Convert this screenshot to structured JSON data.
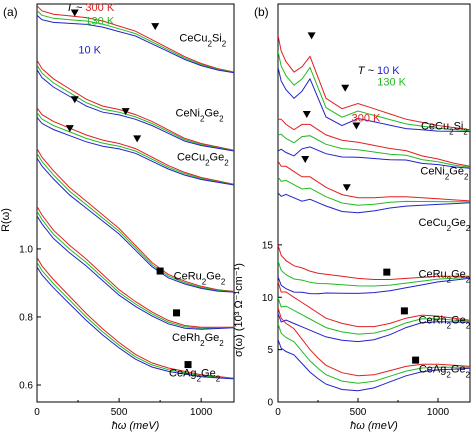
{
  "chart_data": [
    {
      "type": "line",
      "panel_label": "(a)",
      "xlabel": "ħω (meV)",
      "ylabel": "R(ω)",
      "xlim": [
        0,
        1200
      ],
      "ylim": [
        0.55,
        1.72
      ],
      "x_ticks": [
        0,
        500,
        1000
      ],
      "y_ticks": [
        0.6,
        0.8,
        1.0
      ],
      "y_tick_labels": [
        "0.6",
        "0.8",
        "1.0"
      ],
      "temperature_labels": [
        {
          "text": "300 K",
          "prefix": "T ~ ",
          "color": "#e02020",
          "x": 470,
          "y": 1.7
        },
        {
          "text": "130 K",
          "prefix": "",
          "color": "#22bb22",
          "x": 470,
          "y": 1.66
        },
        {
          "text": "10 K",
          "prefix": "",
          "color": "#2222cc",
          "x": 390,
          "y": 1.575
        }
      ],
      "markers": [
        {
          "shape": "triangle",
          "x": 230,
          "y": 1.695
        },
        {
          "shape": "triangle",
          "x": 720,
          "y": 1.655
        },
        {
          "shape": "triangle",
          "x": 230,
          "y": 1.44
        },
        {
          "shape": "triangle",
          "x": 540,
          "y": 1.405
        },
        {
          "shape": "triangle",
          "x": 200,
          "y": 1.355
        },
        {
          "shape": "triangle",
          "x": 610,
          "y": 1.325
        },
        {
          "shape": "square",
          "x": 750,
          "y": 0.935
        },
        {
          "shape": "square",
          "x": 850,
          "y": 0.812
        },
        {
          "shape": "square",
          "x": 920,
          "y": 0.66
        }
      ],
      "compound_labels": [
        {
          "text": "CeCu2Si2",
          "x": 1010,
          "y": 1.61
        },
        {
          "text": "CeNi2Ge2",
          "x": 990,
          "y": 1.39
        },
        {
          "text": "CeCu2Ge2",
          "x": 1010,
          "y": 1.26
        },
        {
          "text": "CeRu2Ge2",
          "x": 990,
          "y": 0.91
        },
        {
          "text": "CeRh2Ge2",
          "x": 980,
          "y": 0.73
        },
        {
          "text": "CeAg2Ge2",
          "x": 960,
          "y": 0.625
        }
      ],
      "series": [
        {
          "name": "CeCu2Si2",
          "x": [
            0,
            30,
            100,
            200,
            300,
            400,
            500,
            600,
            700,
            800,
            900,
            1000,
            1100,
            1200
          ],
          "y": [
            1.715,
            1.7,
            1.69,
            1.685,
            1.68,
            1.67,
            1.655,
            1.64,
            1.615,
            1.59,
            1.565,
            1.545,
            1.53,
            1.52
          ]
        },
        {
          "name": "CeNi2Ge2",
          "x": [
            0,
            30,
            100,
            200,
            300,
            400,
            500,
            600,
            700,
            800,
            900,
            1000,
            1100,
            1200
          ],
          "y": [
            1.555,
            1.53,
            1.5,
            1.47,
            1.44,
            1.42,
            1.41,
            1.395,
            1.375,
            1.35,
            1.325,
            1.31,
            1.3,
            1.29
          ]
        },
        {
          "name": "CeCu2Ge2",
          "x": [
            0,
            30,
            100,
            200,
            300,
            400,
            500,
            600,
            700,
            800,
            900,
            1000,
            1100,
            1200
          ],
          "y": [
            1.415,
            1.395,
            1.375,
            1.355,
            1.335,
            1.32,
            1.31,
            1.295,
            1.27,
            1.245,
            1.225,
            1.21,
            1.2,
            1.19
          ]
        },
        {
          "name": "CeRu2Ge2",
          "x": [
            0,
            30,
            100,
            200,
            300,
            400,
            500,
            600,
            700,
            800,
            900,
            1000,
            1100,
            1200
          ],
          "y": [
            1.295,
            1.27,
            1.23,
            1.18,
            1.14,
            1.1,
            1.06,
            1.01,
            0.96,
            0.925,
            0.905,
            0.89,
            0.88,
            0.875
          ]
        },
        {
          "name": "CeRh2Ge2",
          "x": [
            0,
            30,
            100,
            200,
            300,
            400,
            500,
            600,
            700,
            800,
            900,
            1000,
            1100,
            1200
          ],
          "y": [
            1.125,
            1.1,
            1.055,
            1.01,
            0.97,
            0.925,
            0.88,
            0.845,
            0.815,
            0.79,
            0.775,
            0.77,
            0.77,
            0.77
          ]
        },
        {
          "name": "CeAg2Ge2",
          "x": [
            0,
            30,
            100,
            200,
            300,
            400,
            500,
            600,
            700,
            800,
            900,
            1000,
            1100,
            1200
          ],
          "y": [
            0.975,
            0.95,
            0.91,
            0.86,
            0.81,
            0.765,
            0.725,
            0.69,
            0.665,
            0.65,
            0.64,
            0.63,
            0.625,
            0.62
          ]
        }
      ]
    },
    {
      "type": "line",
      "panel_label": "(b)",
      "xlabel": "ħω (meV)",
      "ylabel": "σ(ω) (10³ Ω⁻¹cm⁻¹)",
      "xlim": [
        0,
        1200
      ],
      "ylim": [
        0,
        38
      ],
      "x_ticks": [
        0,
        500,
        1000
      ],
      "y_ticks": [
        0,
        5,
        10,
        15
      ],
      "y_tick_labels": [
        "0",
        "5",
        "10",
        "15"
      ],
      "temperature_labels": [
        {
          "text": "10 K",
          "prefix": "T ~ ",
          "color": "#2222cc",
          "x": 760,
          "y": 31.3
        },
        {
          "text": "130 K",
          "prefix": "",
          "color": "#22bb22",
          "x": 800,
          "y": 30.2
        },
        {
          "text": "300 K",
          "prefix": "",
          "color": "#e02020",
          "x": 640,
          "y": 26.8
        }
      ],
      "markers": [
        {
          "shape": "triangle",
          "x": 210,
          "y": 35.0
        },
        {
          "shape": "triangle",
          "x": 420,
          "y": 30.0
        },
        {
          "shape": "triangle",
          "x": 180,
          "y": 27.5
        },
        {
          "shape": "triangle",
          "x": 490,
          "y": 26.4
        },
        {
          "shape": "triangle",
          "x": 170,
          "y": 23.2
        },
        {
          "shape": "triangle",
          "x": 430,
          "y": 20.5
        },
        {
          "shape": "square",
          "x": 680,
          "y": 12.4
        },
        {
          "shape": "square",
          "x": 790,
          "y": 8.7
        },
        {
          "shape": "square",
          "x": 860,
          "y": 4.0
        }
      ],
      "compound_labels": [
        {
          "text": "CeCu2Si2",
          "x": 1040,
          "y": 26.0
        },
        {
          "text": "CeNi2Ge2",
          "x": 1040,
          "y": 21.7
        },
        {
          "text": "CeCu2Ge2",
          "x": 1040,
          "y": 16.8
        },
        {
          "text": "CeRu2Ge2",
          "x": 1040,
          "y": 11.9
        },
        {
          "text": "CeRh2Ge2",
          "x": 1040,
          "y": 7.5
        },
        {
          "text": "CeAg2Ge2",
          "x": 1040,
          "y": 2.8
        }
      ],
      "series": [
        {
          "name": "CeCu2Si2",
          "x": [
            0,
            20,
            50,
            100,
            150,
            200,
            250,
            300,
            400,
            500,
            600,
            700,
            800,
            900,
            1000,
            1100,
            1200
          ],
          "y": [
            35.0,
            33.5,
            32.5,
            31.5,
            32.0,
            33.0,
            31.0,
            29.0,
            28.0,
            28.5,
            28.0,
            27.5,
            27.0,
            26.7,
            26.4,
            26.2,
            26.0
          ]
        },
        {
          "name": "CeNi2Ge2",
          "x": [
            0,
            20,
            50,
            100,
            150,
            200,
            250,
            300,
            400,
            500,
            600,
            700,
            800,
            900,
            1000,
            1100,
            1200
          ],
          "y": [
            27.0,
            27.0,
            26.5,
            26.0,
            26.5,
            26.5,
            26.0,
            25.5,
            25.0,
            24.8,
            24.5,
            24.2,
            24.0,
            23.5,
            23.2,
            22.8,
            22.5
          ]
        },
        {
          "name": "CeCu2Ge2",
          "x": [
            0,
            20,
            50,
            100,
            150,
            200,
            250,
            300,
            400,
            500,
            600,
            700,
            800,
            900,
            1000,
            1100,
            1200
          ],
          "y": [
            23.0,
            22.5,
            22.5,
            22.0,
            21.5,
            21.5,
            21.0,
            20.5,
            19.8,
            19.5,
            19.5,
            19.6,
            19.6,
            19.5,
            19.4,
            19.3,
            19.2
          ]
        },
        {
          "name": "CeRu2Ge2",
          "x": [
            0,
            20,
            50,
            100,
            150,
            200,
            250,
            300,
            400,
            500,
            600,
            700,
            800,
            900,
            1000,
            1100,
            1200
          ],
          "y": [
            15.0,
            14.0,
            13.5,
            13.0,
            12.8,
            12.5,
            12.3,
            12.2,
            12.0,
            11.8,
            11.7,
            11.7,
            11.8,
            11.9,
            12.0,
            12.0,
            12.0
          ]
        },
        {
          "name": "CeRh2Ge2",
          "x": [
            0,
            20,
            50,
            100,
            150,
            200,
            250,
            300,
            400,
            500,
            600,
            700,
            800,
            900,
            1000,
            1100,
            1200
          ],
          "y": [
            11.5,
            10.5,
            10.5,
            10.0,
            9.5,
            9.0,
            8.5,
            8.0,
            7.5,
            7.2,
            7.2,
            7.5,
            8.0,
            8.3,
            8.2,
            8.0,
            7.8
          ]
        },
        {
          "name": "CeAg2Ge2",
          "x": [
            0,
            20,
            50,
            100,
            150,
            200,
            250,
            300,
            400,
            500,
            600,
            700,
            800,
            900,
            1000,
            1100,
            1200
          ],
          "y": [
            9.0,
            8.0,
            7.5,
            7.0,
            6.0,
            5.0,
            4.2,
            3.5,
            2.8,
            2.5,
            2.6,
            3.0,
            3.4,
            3.6,
            3.6,
            3.5,
            3.4
          ]
        }
      ]
    }
  ]
}
